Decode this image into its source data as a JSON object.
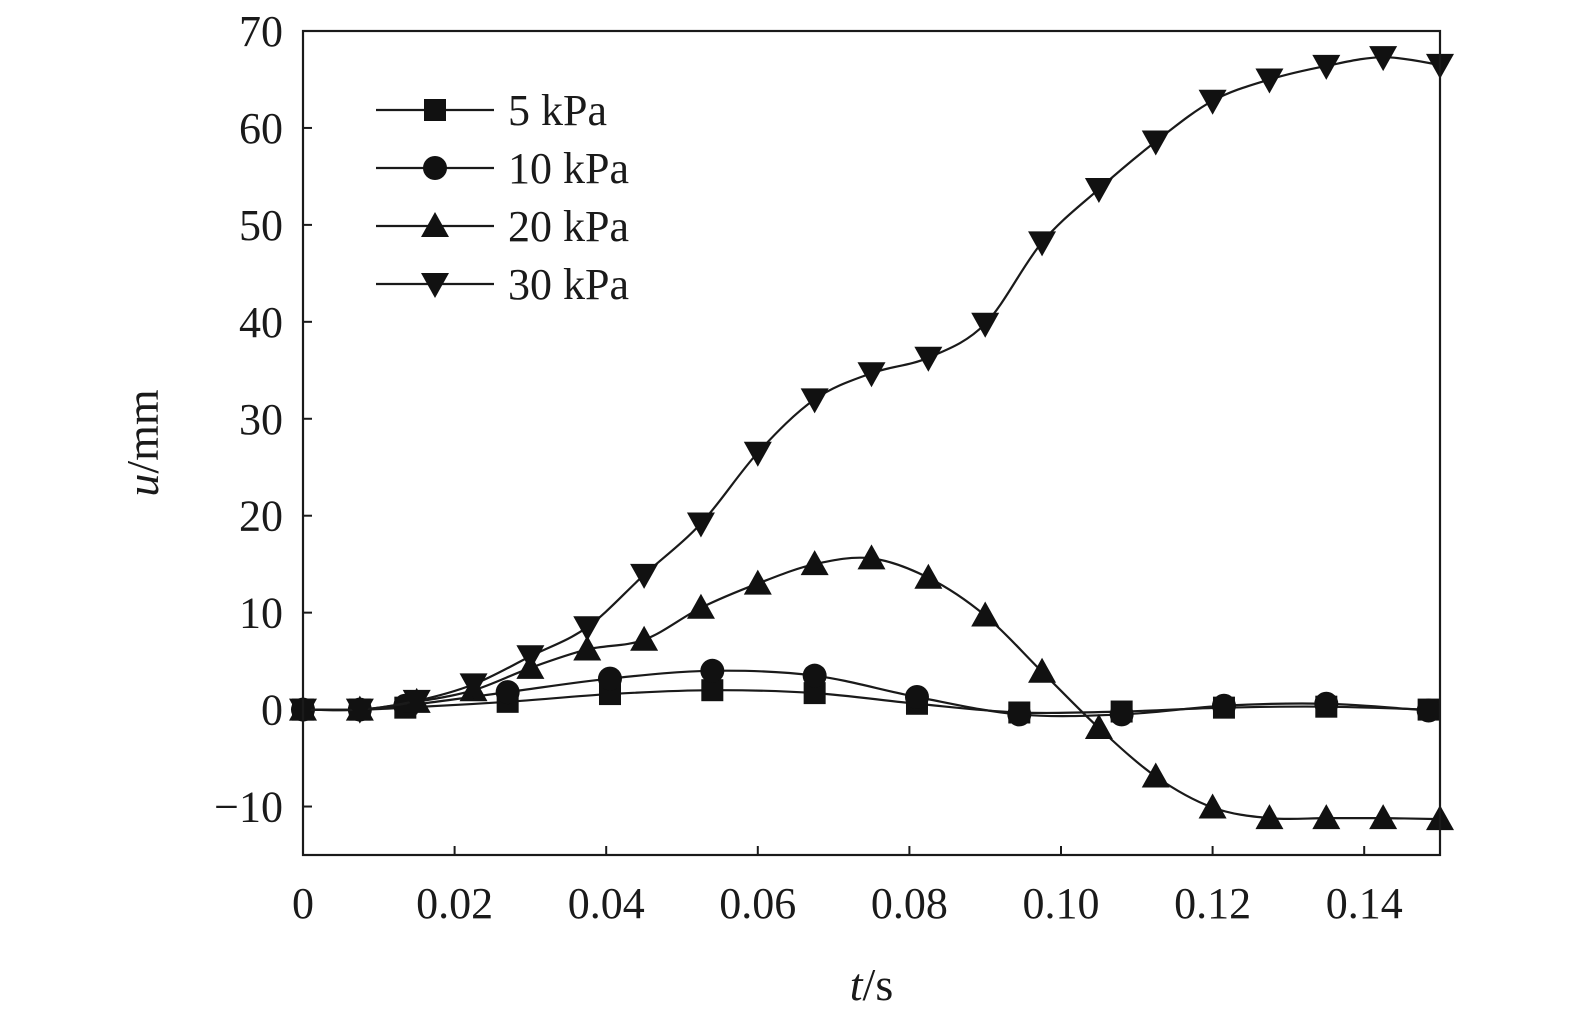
{
  "chart_data": {
    "type": "line",
    "xlabel": {
      "var": "t",
      "unit": "/s"
    },
    "ylabel": {
      "var": "u",
      "unit": "/mm"
    },
    "xlim": [
      0,
      0.15
    ],
    "ylim": [
      -15,
      70
    ],
    "x_ticks": [
      0,
      0.02,
      0.04,
      0.06,
      0.08,
      0.1,
      0.12,
      0.14
    ],
    "x_tick_labels": [
      "0",
      "0.02",
      "0.04",
      "0.06",
      "0.08",
      "0.10",
      "0.12",
      "0.14"
    ],
    "y_ticks": [
      -10,
      0,
      10,
      20,
      30,
      40,
      50,
      60,
      70
    ],
    "y_tick_labels": [
      "−10",
      "0",
      "10",
      "20",
      "30",
      "40",
      "50",
      "60",
      "70"
    ],
    "grid": false,
    "legend_position": "top-left",
    "series": [
      {
        "name": "5 kPa",
        "marker": "square",
        "points": [
          [
            0,
            0
          ],
          [
            0.0075,
            0
          ],
          [
            0.0135,
            0.2
          ],
          [
            0.027,
            0.8
          ],
          [
            0.0405,
            1.6
          ],
          [
            0.054,
            2.0
          ],
          [
            0.0675,
            1.7
          ],
          [
            0.081,
            0.6
          ],
          [
            0.0945,
            -0.3
          ],
          [
            0.108,
            -0.2
          ],
          [
            0.1215,
            0.2
          ],
          [
            0.135,
            0.3
          ],
          [
            0.1485,
            0
          ]
        ]
      },
      {
        "name": "10 kPa",
        "marker": "circle",
        "points": [
          [
            0,
            0
          ],
          [
            0.0075,
            0
          ],
          [
            0.0135,
            0.4
          ],
          [
            0.027,
            1.8
          ],
          [
            0.0405,
            3.2
          ],
          [
            0.054,
            4.0
          ],
          [
            0.0675,
            3.5
          ],
          [
            0.081,
            1.3
          ],
          [
            0.0945,
            -0.5
          ],
          [
            0.108,
            -0.5
          ],
          [
            0.1215,
            0.4
          ],
          [
            0.135,
            0.6
          ],
          [
            0.1485,
            -0.1
          ]
        ]
      },
      {
        "name": "20 kPa",
        "marker": "triangle-up",
        "points": [
          [
            0,
            0
          ],
          [
            0.0075,
            0
          ],
          [
            0.015,
            0.8
          ],
          [
            0.0225,
            2.0
          ],
          [
            0.03,
            4.3
          ],
          [
            0.0375,
            6.2
          ],
          [
            0.045,
            7.2
          ],
          [
            0.0525,
            10.5
          ],
          [
            0.06,
            13.0
          ],
          [
            0.0675,
            15.0
          ],
          [
            0.075,
            15.6
          ],
          [
            0.0825,
            13.6
          ],
          [
            0.09,
            9.7
          ],
          [
            0.0975,
            3.9
          ],
          [
            0.105,
            -1.9
          ],
          [
            0.1125,
            -6.9
          ],
          [
            0.12,
            -10.1
          ],
          [
            0.1275,
            -11.2
          ],
          [
            0.135,
            -11.2
          ],
          [
            0.1425,
            -11.2
          ],
          [
            0.15,
            -11.3
          ]
        ]
      },
      {
        "name": "30 kPa",
        "marker": "triangle-down",
        "points": [
          [
            0,
            0
          ],
          [
            0.0075,
            0
          ],
          [
            0.015,
            0.9
          ],
          [
            0.0225,
            2.6
          ],
          [
            0.03,
            5.5
          ],
          [
            0.0375,
            8.5
          ],
          [
            0.045,
            13.9
          ],
          [
            0.0525,
            19.2
          ],
          [
            0.06,
            26.5
          ],
          [
            0.0675,
            32.0
          ],
          [
            0.075,
            34.7
          ],
          [
            0.0825,
            36.3
          ],
          [
            0.09,
            39.8
          ],
          [
            0.0975,
            48.2
          ],
          [
            0.105,
            53.7
          ],
          [
            0.1125,
            58.6
          ],
          [
            0.12,
            62.8
          ],
          [
            0.1275,
            65.0
          ],
          [
            0.135,
            66.4
          ],
          [
            0.1425,
            67.3
          ],
          [
            0.15,
            66.5
          ]
        ]
      }
    ]
  }
}
